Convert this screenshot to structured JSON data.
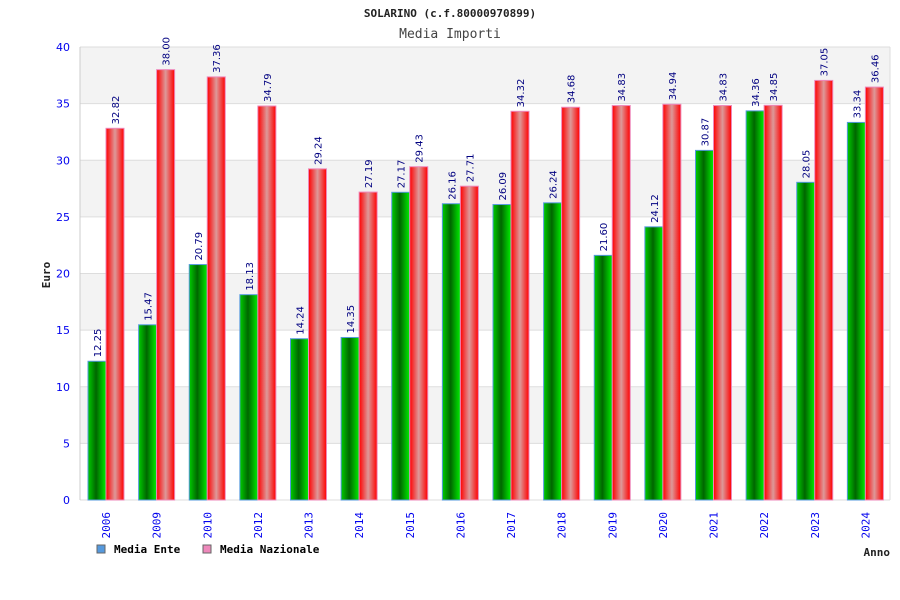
{
  "chart_data": {
    "type": "bar",
    "title": "SOLARINO (c.f.80000970899)",
    "subtitle": "Media Importi",
    "xlabel": "Anno",
    "ylabel": "Euro",
    "ylim": [
      0,
      40
    ],
    "yticks": [
      "0",
      "5",
      "10",
      "15",
      "20",
      "25",
      "30",
      "35",
      "40"
    ],
    "categories": [
      "2006",
      "2009",
      "2010",
      "2012",
      "2013",
      "2014",
      "2015",
      "2016",
      "2017",
      "2018",
      "2019",
      "2020",
      "2021",
      "2022",
      "2023",
      "2024"
    ],
    "series": [
      {
        "name": "Media Ente",
        "color": "#00aa00",
        "legend_color": "#5599dd",
        "values": [
          12.25,
          15.47,
          20.79,
          18.13,
          14.24,
          14.35,
          27.17,
          26.16,
          26.09,
          26.24,
          21.6,
          24.12,
          30.87,
          34.36,
          28.05,
          33.34
        ],
        "labels": [
          "12.25",
          "15.47",
          "20.79",
          "18.13",
          "14.24",
          "14.35",
          "27.17",
          "26.16",
          "26.09",
          "26.24",
          "21.60",
          "24.12",
          "30.87",
          "34.36",
          "28.05",
          "33.34"
        ]
      },
      {
        "name": "Media Nazionale",
        "color": "#ff0000",
        "legend_color": "#ee88bb",
        "values": [
          32.82,
          38.0,
          37.36,
          34.79,
          29.24,
          27.19,
          29.43,
          27.71,
          34.32,
          34.68,
          34.83,
          34.94,
          34.83,
          34.85,
          37.05,
          36.46
        ],
        "labels": [
          "32.82",
          "38.00",
          "37.36",
          "34.79",
          "29.24",
          "27.19",
          "29.43",
          "27.71",
          "34.32",
          "34.68",
          "34.83",
          "34.94",
          "34.83",
          "34.85",
          "37.05",
          "36.46"
        ]
      }
    ],
    "grid": true,
    "legend_placement": "bottom-left"
  }
}
